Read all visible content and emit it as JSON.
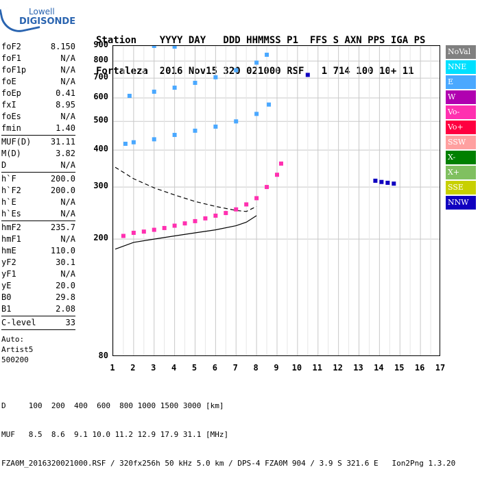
{
  "logo": {
    "line1": "Lowell",
    "line2": "DIGISONDE"
  },
  "header": {
    "line1": "Station    YYYY DAY   DDD HHMMSS P1  FFS S AXN PPS IGA PS",
    "line2": "Fortaleza  2016 Nov15 320 021000 RSF   1 714 100 10+ 11"
  },
  "params": {
    "group1": [
      {
        "label": "foF2",
        "value": "8.150"
      },
      {
        "label": "foF1",
        "value": "N/A"
      },
      {
        "label": "foF1p",
        "value": "N/A"
      },
      {
        "label": "foE",
        "value": "N/A"
      },
      {
        "label": "foEp",
        "value": "0.41"
      },
      {
        "label": "fxI",
        "value": "8.95"
      },
      {
        "label": "foEs",
        "value": "N/A"
      },
      {
        "label": "fmin",
        "value": "1.40"
      }
    ],
    "group2": [
      {
        "label": "MUF(D)",
        "value": "31.11"
      },
      {
        "label": "M(D)",
        "value": "3.82"
      },
      {
        "label": "D",
        "value": "N/A"
      }
    ],
    "group3": [
      {
        "label": "h`F",
        "value": "200.0"
      },
      {
        "label": "h`F2",
        "value": "200.0"
      },
      {
        "label": "h`E",
        "value": "N/A"
      },
      {
        "label": "h`Es",
        "value": "N/A"
      }
    ],
    "group4": [
      {
        "label": "hmF2",
        "value": "235.7"
      },
      {
        "label": "hmF1",
        "value": "N/A"
      },
      {
        "label": "hmE",
        "value": "110.0"
      },
      {
        "label": "yF2",
        "value": "30.1"
      },
      {
        "label": "yF1",
        "value": "N/A"
      },
      {
        "label": "yE",
        "value": "20.0"
      },
      {
        "label": "B0",
        "value": "29.8"
      },
      {
        "label": "B1",
        "value": "2.08"
      }
    ],
    "group5": [
      {
        "label": "C-level",
        "value": "33"
      }
    ],
    "auto_lines": [
      "Auto:",
      "Artist5",
      "500200"
    ]
  },
  "legend": [
    {
      "label": "NoVal",
      "color": "#808080"
    },
    {
      "label": "NNE",
      "color": "#00e0ff"
    },
    {
      "label": "E",
      "color": "#4aa8ff"
    },
    {
      "label": "W",
      "color": "#b000b0"
    },
    {
      "label": "Vo-",
      "color": "#ff30b0"
    },
    {
      "label": "Vo+",
      "color": "#ff0040"
    },
    {
      "label": "SSW",
      "color": "#ffa0a0"
    },
    {
      "label": "X-",
      "color": "#008000"
    },
    {
      "label": "X+",
      "color": "#80c060"
    },
    {
      "label": "SSE",
      "color": "#c8d000"
    },
    {
      "label": "NNW",
      "color": "#1000c0"
    }
  ],
  "footer": {
    "line1": "D     100  200  400  600  800 1000 1500 3000 [km]",
    "line2": "MUF   8.5  8.6  9.1 10.0 11.2 12.9 17.9 31.1 [MHz]",
    "line3": "FZA0M_2016320021000.RSF / 320fx256h 50 kHz 5.0 km / DPS-4 FZA0M 904 / 3.9 S 321.6 E   Ion2Png 1.3.20"
  },
  "chart_data": {
    "type": "scatter",
    "title": "",
    "xlabel": "",
    "ylabel": "",
    "xlim": [
      1,
      17
    ],
    "ylim": [
      80,
      900
    ],
    "y_scale": "log",
    "x_ticks": [
      1,
      2,
      3,
      4,
      5,
      6,
      7,
      8,
      9,
      10,
      11,
      12,
      13,
      14,
      15,
      16,
      17
    ],
    "y_ticks": [
      80,
      200,
      300,
      400,
      500,
      600,
      700,
      800,
      900
    ],
    "grid": true,
    "legend_position": "right",
    "series": [
      {
        "name": "Vo-",
        "color": "#ff30b0",
        "points": [
          [
            1.5,
            205
          ],
          [
            2.0,
            210
          ],
          [
            2.5,
            212
          ],
          [
            3.0,
            215
          ],
          [
            3.5,
            218
          ],
          [
            4.0,
            222
          ],
          [
            4.5,
            226
          ],
          [
            5.0,
            230
          ],
          [
            5.5,
            235
          ],
          [
            6.0,
            240
          ],
          [
            6.5,
            245
          ],
          [
            7.0,
            252
          ],
          [
            7.5,
            262
          ],
          [
            8.0,
            275
          ],
          [
            8.5,
            300
          ],
          [
            9.0,
            330
          ],
          [
            9.2,
            360
          ]
        ]
      },
      {
        "name": "E",
        "color": "#4aa8ff",
        "points": [
          [
            1.6,
            420
          ],
          [
            2.0,
            425
          ],
          [
            3.0,
            435
          ],
          [
            4.0,
            450
          ],
          [
            5.0,
            465
          ],
          [
            6.0,
            480
          ],
          [
            7.0,
            500
          ],
          [
            8.0,
            530
          ],
          [
            8.6,
            570
          ],
          [
            1.8,
            610
          ],
          [
            3.0,
            630
          ],
          [
            4.0,
            650
          ],
          [
            5.0,
            675
          ],
          [
            6.0,
            705
          ],
          [
            7.0,
            745
          ],
          [
            8.0,
            790
          ],
          [
            8.5,
            840
          ],
          [
            3.0,
            900
          ],
          [
            4.0,
            895
          ]
        ]
      },
      {
        "name": "NNW",
        "color": "#1000c0",
        "points": [
          [
            13.8,
            315
          ],
          [
            14.1,
            312
          ],
          [
            14.4,
            310
          ],
          [
            14.7,
            308
          ],
          [
            10.5,
            718
          ]
        ]
      }
    ],
    "profile_solid": [
      [
        1.1,
        185
      ],
      [
        2.0,
        195
      ],
      [
        3.0,
        200
      ],
      [
        4.0,
        205
      ],
      [
        5.0,
        210
      ],
      [
        6.0,
        215
      ],
      [
        7.0,
        222
      ],
      [
        7.5,
        228
      ],
      [
        8.0,
        240
      ]
    ],
    "profile_dashed": [
      [
        1.1,
        350
      ],
      [
        2.0,
        320
      ],
      [
        3.0,
        298
      ],
      [
        4.0,
        282
      ],
      [
        5.0,
        268
      ],
      [
        6.0,
        258
      ],
      [
        7.0,
        250
      ],
      [
        7.5,
        248
      ],
      [
        8.0,
        258
      ]
    ]
  }
}
